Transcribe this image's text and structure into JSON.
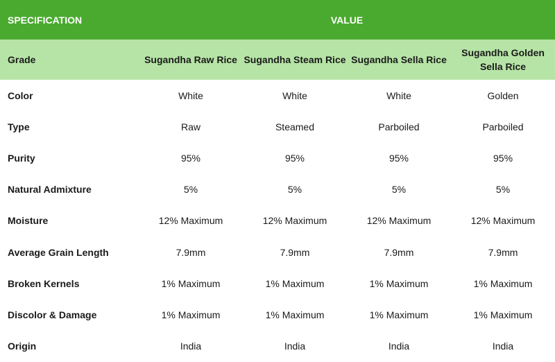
{
  "header": {
    "spec_label": "SPECIFICATION",
    "value_label": "VALUE"
  },
  "grade": {
    "label": "Grade",
    "values": [
      "Sugandha Raw Rice",
      "Sugandha Steam Rice",
      "Sugandha Sella Rice",
      "Sugandha Golden Sella Rice"
    ]
  },
  "rows": [
    {
      "label": "Color",
      "values": [
        "White",
        "White",
        "White",
        "Golden"
      ]
    },
    {
      "label": "Type",
      "values": [
        "Raw",
        "Steamed",
        "Parboiled",
        "Parboiled"
      ]
    },
    {
      "label": "Purity",
      "values": [
        "95%",
        "95%",
        "95%",
        "95%"
      ]
    },
    {
      "label": "Natural Admixture",
      "values": [
        "5%",
        "5%",
        "5%",
        "5%"
      ]
    },
    {
      "label": "Moisture",
      "values": [
        "12% Maximum",
        "12% Maximum",
        "12% Maximum",
        "12% Maximum"
      ]
    },
    {
      "label": "Average Grain Length",
      "values": [
        "7.9mm",
        "7.9mm",
        "7.9mm",
        "7.9mm"
      ]
    },
    {
      "label": "Broken Kernels",
      "values": [
        "1% Maximum",
        "1% Maximum",
        "1% Maximum",
        "1% Maximum"
      ]
    },
    {
      "label": "Discolor & Damage",
      "values": [
        "1% Maximum",
        "1% Maximum",
        "1% Maximum",
        "1% Maximum"
      ]
    },
    {
      "label": "Origin",
      "values": [
        "India",
        "India",
        "India",
        "India"
      ]
    }
  ],
  "colors": {
    "header_bg": "#4aaa2f",
    "grade_bg": "#b6e4a6"
  }
}
